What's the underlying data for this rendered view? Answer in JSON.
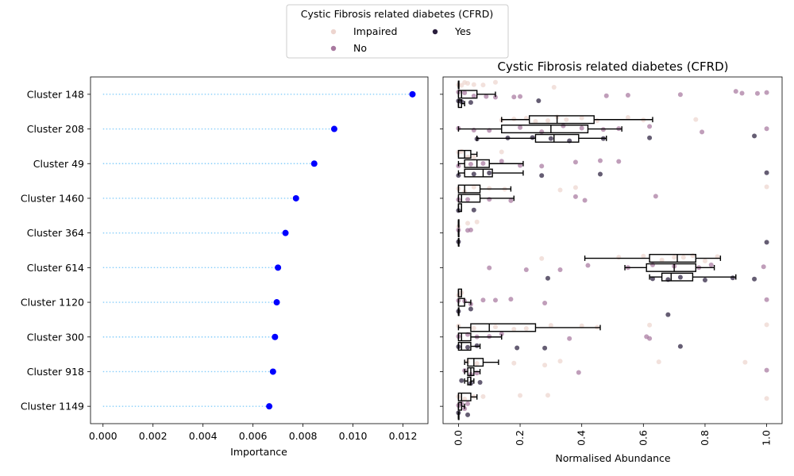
{
  "legend": {
    "title": "Cystic Fibrosis related diabetes (CFRD)",
    "entries": [
      {
        "label": "Impaired",
        "color": "#edd5cf"
      },
      {
        "label": "No",
        "color": "#a8789f"
      },
      {
        "label": "Yes",
        "color": "#2a1e3d"
      }
    ]
  },
  "chart_data": [
    {
      "type": "scatter",
      "subtype": "lollipop",
      "title": "",
      "xlabel": "Importance",
      "ylabel": "",
      "categories": [
        "Cluster 148",
        "Cluster 208",
        "Cluster 49",
        "Cluster 1460",
        "Cluster 364",
        "Cluster 614",
        "Cluster 1120",
        "Cluster 300",
        "Cluster 918",
        "Cluster 1149"
      ],
      "values": [
        0.01238,
        0.00925,
        0.00845,
        0.00772,
        0.0073,
        0.007,
        0.00695,
        0.00688,
        0.0068,
        0.00665
      ],
      "xlim": [
        -0.0005,
        0.013
      ],
      "xticks": [
        "0.000",
        "0.002",
        "0.004",
        "0.006",
        "0.008",
        "0.010",
        "0.012"
      ],
      "xtick_values": [
        0,
        0.002,
        0.004,
        0.006,
        0.008,
        0.01,
        0.012
      ],
      "marker_color": "#0000ff",
      "stem_color": "#87cefa",
      "grid": false
    },
    {
      "type": "box",
      "title": "Cystic Fibrosis related diabetes (CFRD)",
      "xlabel": "Normalised Abundance",
      "ylabel": "",
      "xlim": [
        -0.05,
        1.05
      ],
      "xticks": [
        "0.0",
        "0.2",
        "0.4",
        "0.6",
        "0.8",
        "1.0"
      ],
      "xtick_values": [
        0,
        0.2,
        0.4,
        0.6,
        0.8,
        1.0
      ],
      "categories": [
        "Cluster 148",
        "Cluster 208",
        "Cluster 49",
        "Cluster 1460",
        "Cluster 364",
        "Cluster 614",
        "Cluster 1120",
        "Cluster 300",
        "Cluster 918",
        "Cluster 1149"
      ],
      "hue_order": [
        "Impaired",
        "No",
        "Yes"
      ],
      "series": [
        {
          "name": "Impaired",
          "boxes": [
            {
              "q1": 0.0,
              "median": 0.0,
              "q3": 0.0,
              "whislo": 0.0,
              "whishi": 0.0,
              "points": [
                0.0,
                0.01,
                0.02,
                0.03,
                0.05,
                0.08,
                0.12,
                0.31
              ]
            },
            {
              "q1": 0.23,
              "median": 0.32,
              "q3": 0.44,
              "whislo": 0.14,
              "whishi": 0.63,
              "points": [
                0.14,
                0.18,
                0.22,
                0.25,
                0.29,
                0.32,
                0.35,
                0.4,
                0.45,
                0.55,
                0.6,
                0.77
              ]
            },
            {
              "q1": 0.0,
              "median": 0.02,
              "q3": 0.04,
              "whislo": 0.0,
              "whishi": 0.06,
              "points": [
                0.0,
                0.01,
                0.03,
                0.05,
                0.14
              ]
            },
            {
              "q1": 0.0,
              "median": 0.02,
              "q3": 0.07,
              "whislo": 0.0,
              "whishi": 0.17,
              "points": [
                0.0,
                0.02,
                0.05,
                0.1,
                0.15,
                0.33,
                0.38,
                1.0
              ]
            },
            {
              "q1": 0.0,
              "median": 0.0,
              "q3": 0.0,
              "whislo": 0.0,
              "whishi": 0.0,
              "points": [
                0.0,
                0.03,
                0.06
              ]
            },
            {
              "q1": 0.62,
              "median": 0.71,
              "q3": 0.77,
              "whislo": 0.41,
              "whishi": 0.85,
              "points": [
                0.27,
                0.52,
                0.6,
                0.66,
                0.7,
                0.73,
                0.76,
                0.8,
                0.84
              ]
            },
            {
              "q1": 0.0,
              "median": 0.0,
              "q3": 0.01,
              "whislo": 0.0,
              "whishi": 0.01,
              "points": [
                0.0,
                0.01
              ]
            },
            {
              "q1": 0.04,
              "median": 0.1,
              "q3": 0.25,
              "whislo": 0.0,
              "whishi": 0.46,
              "points": [
                0.0,
                0.05,
                0.12,
                0.18,
                0.22,
                0.3,
                0.4,
                0.45,
                0.62,
                1.0
              ]
            },
            {
              "q1": 0.03,
              "median": 0.05,
              "q3": 0.08,
              "whislo": 0.02,
              "whishi": 0.13,
              "points": [
                0.03,
                0.06,
                0.18,
                0.28,
                0.33,
                0.65,
                0.93
              ]
            },
            {
              "q1": 0.0,
              "median": 0.01,
              "q3": 0.04,
              "whislo": 0.0,
              "whishi": 0.06,
              "points": [
                0.0,
                0.02,
                0.05,
                0.08,
                0.2,
                0.29,
                1.0
              ]
            }
          ]
        },
        {
          "name": "No",
          "boxes": [
            {
              "q1": 0.0,
              "median": 0.01,
              "q3": 0.06,
              "whislo": 0.0,
              "whishi": 0.12,
              "points": [
                0.0,
                0.02,
                0.05,
                0.09,
                0.12,
                0.18,
                0.2,
                0.48,
                0.55,
                0.72,
                0.9,
                0.92,
                0.97,
                1.0
              ]
            },
            {
              "q1": 0.14,
              "median": 0.3,
              "q3": 0.42,
              "whislo": 0.0,
              "whishi": 0.53,
              "points": [
                0.0,
                0.05,
                0.1,
                0.2,
                0.27,
                0.34,
                0.4,
                0.47,
                0.52,
                0.62,
                0.79,
                1.0
              ]
            },
            {
              "q1": 0.02,
              "median": 0.06,
              "q3": 0.1,
              "whislo": 0.0,
              "whishi": 0.21,
              "points": [
                0.0,
                0.04,
                0.08,
                0.14,
                0.2,
                0.27,
                0.38,
                0.46,
                0.52
              ]
            },
            {
              "q1": 0.0,
              "median": 0.01,
              "q3": 0.07,
              "whislo": 0.0,
              "whishi": 0.18,
              "points": [
                0.0,
                0.03,
                0.1,
                0.17,
                0.38,
                0.41,
                0.64
              ]
            },
            {
              "q1": 0.0,
              "median": 0.0,
              "q3": 0.0,
              "whislo": 0.0,
              "whishi": 0.0,
              "points": [
                0.0,
                0.03,
                0.04
              ]
            },
            {
              "q1": 0.61,
              "median": 0.7,
              "q3": 0.77,
              "whislo": 0.54,
              "whishi": 0.83,
              "points": [
                0.1,
                0.22,
                0.33,
                0.42,
                0.55,
                0.63,
                0.7,
                0.78,
                0.82,
                0.99
              ]
            },
            {
              "q1": 0.0,
              "median": 0.0,
              "q3": 0.02,
              "whislo": 0.0,
              "whishi": 0.04,
              "points": [
                0.0,
                0.02,
                0.04,
                0.08,
                0.12,
                0.17,
                0.28,
                1.0
              ]
            },
            {
              "q1": 0.0,
              "median": 0.01,
              "q3": 0.04,
              "whislo": 0.0,
              "whishi": 0.14,
              "points": [
                0.0,
                0.03,
                0.06,
                0.1,
                0.14,
                0.36,
                0.61,
                0.62
              ]
            },
            {
              "q1": 0.03,
              "median": 0.04,
              "q3": 0.05,
              "whislo": 0.02,
              "whishi": 0.07,
              "points": [
                0.02,
                0.04,
                0.06,
                0.39,
                1.0
              ]
            },
            {
              "q1": 0.0,
              "median": 0.0,
              "q3": 0.01,
              "whislo": 0.0,
              "whishi": 0.02,
              "points": [
                0.0,
                0.01,
                0.02,
                0.03
              ]
            }
          ]
        },
        {
          "name": "Yes",
          "boxes": [
            {
              "q1": 0.0,
              "median": 0.0,
              "q3": 0.01,
              "whislo": 0.0,
              "whishi": 0.02,
              "points": [
                0.0,
                0.01,
                0.04,
                0.26
              ]
            },
            {
              "q1": 0.25,
              "median": 0.31,
              "q3": 0.39,
              "whislo": 0.06,
              "whishi": 0.48,
              "points": [
                0.06,
                0.16,
                0.24,
                0.3,
                0.36,
                0.47,
                0.62,
                0.96
              ]
            },
            {
              "q1": 0.02,
              "median": 0.08,
              "q3": 0.11,
              "whislo": 0.0,
              "whishi": 0.21,
              "points": [
                0.0,
                0.05,
                0.1,
                0.27,
                0.46,
                1.0
              ]
            },
            {
              "q1": 0.0,
              "median": 0.0,
              "q3": 0.01,
              "whislo": 0.0,
              "whishi": 0.01,
              "points": [
                0.0,
                0.05
              ]
            },
            {
              "q1": 0.0,
              "median": 0.0,
              "q3": 0.0,
              "whislo": 0.0,
              "whishi": 0.0,
              "points": [
                0.0,
                1.0
              ]
            },
            {
              "q1": 0.66,
              "median": 0.69,
              "q3": 0.76,
              "whislo": 0.62,
              "whishi": 0.9,
              "points": [
                0.29,
                0.63,
                0.68,
                0.72,
                0.8,
                0.89,
                0.96
              ]
            },
            {
              "q1": 0.0,
              "median": 0.0,
              "q3": 0.0,
              "whislo": 0.0,
              "whishi": 0.0,
              "points": [
                0.0,
                0.04,
                0.68
              ]
            },
            {
              "q1": 0.0,
              "median": 0.01,
              "q3": 0.04,
              "whislo": 0.0,
              "whishi": 0.07,
              "points": [
                0.0,
                0.03,
                0.06,
                0.19,
                0.28,
                0.72
              ]
            },
            {
              "q1": 0.03,
              "median": 0.04,
              "q3": 0.04,
              "whislo": 0.02,
              "whishi": 0.05,
              "points": [
                0.01,
                0.04,
                0.07
              ]
            },
            {
              "q1": 0.0,
              "median": 0.0,
              "q3": 0.0,
              "whislo": 0.0,
              "whishi": 0.0,
              "points": [
                0.0,
                0.03
              ]
            }
          ]
        }
      ]
    }
  ]
}
